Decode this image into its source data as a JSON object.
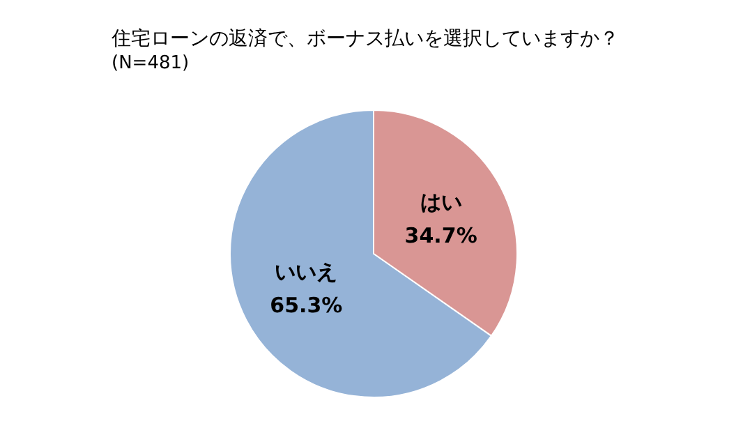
{
  "chart_data": {
    "type": "pie",
    "title": "住宅ローンの返済で、ボーナス払いを選択していますか？",
    "subtitle": "(N=481)",
    "categories": [
      "はい",
      "いいえ"
    ],
    "values": [
      34.7,
      65.3
    ],
    "colors": [
      "#d99694",
      "#95b3d7"
    ],
    "value_labels": [
      "34.7%",
      "65.3%"
    ],
    "legend": false
  }
}
